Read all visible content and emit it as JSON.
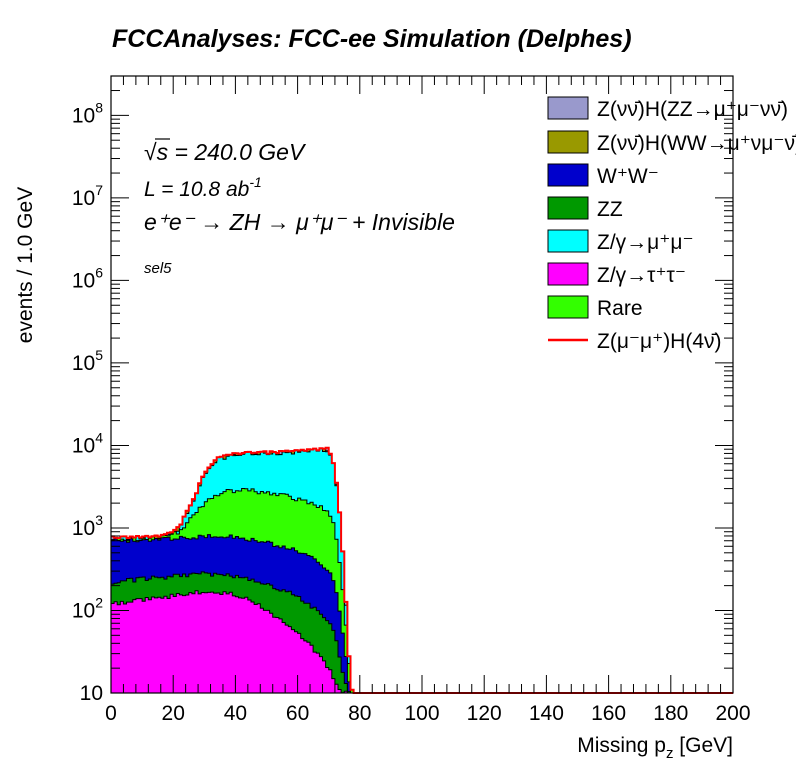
{
  "chart_data": {
    "type": "area",
    "title": "FCCAnalyses: FCC-ee Simulation (Delphes)",
    "xlabel_main": "Missing p",
    "xlabel_sub": "z",
    "xlabel_unit": " [GeV]",
    "ylabel": "events / 1.0 GeV",
    "xlim": [
      0,
      200
    ],
    "ylim": [
      10,
      300000000
    ],
    "log_y": true,
    "grid": false,
    "x_ticks": [
      "0",
      "20",
      "40",
      "60",
      "80",
      "100",
      "120",
      "140",
      "160",
      "180",
      "200"
    ],
    "y_ticks": [
      {
        "base": "10",
        "exp": ""
      },
      {
        "base": "10",
        "exp": "2"
      },
      {
        "base": "10",
        "exp": "3"
      },
      {
        "base": "10",
        "exp": "4"
      },
      {
        "base": "10",
        "exp": "5"
      },
      {
        "base": "10",
        "exp": "6"
      },
      {
        "base": "10",
        "exp": "7"
      },
      {
        "base": "10",
        "exp": "8"
      }
    ],
    "annotations": {
      "sqrt_s_prefix": "√",
      "sqrt_s_symbol": "s",
      "sqrt_s_value": " = 240.0 GeV",
      "lumi_prefix": "L = 10.8 ab",
      "lumi_exp": "-1",
      "process": "e⁺e⁻ → ZH → μ⁺μ⁻ + Invisible",
      "selection": "sel5"
    },
    "legend_position": "top-right",
    "x_knots": [
      0,
      5,
      10,
      15,
      18,
      22,
      26,
      30,
      34,
      38,
      42,
      46,
      50,
      55,
      60,
      65,
      70,
      72,
      74,
      76,
      77,
      78,
      200
    ],
    "series": [
      {
        "legend": "Z/γ→τ⁺τ⁻",
        "color": "#ff00ff",
        "values": [
          120,
          125,
          135,
          140,
          145,
          155,
          165,
          170,
          168,
          160,
          145,
          125,
          100,
          75,
          55,
          35,
          20,
          14,
          10,
          10,
          10,
          10,
          10
        ]
      },
      {
        "legend": "ZZ",
        "color": "#009900",
        "values": [
          220,
          230,
          240,
          250,
          255,
          265,
          275,
          280,
          275,
          270,
          255,
          235,
          210,
          180,
          150,
          110,
          75,
          55,
          20,
          12,
          10,
          10,
          10
        ]
      },
      {
        "legend": "W⁺W⁻",
        "color": "#0000cc",
        "values": [
          700,
          700,
          710,
          720,
          730,
          750,
          770,
          790,
          800,
          790,
          760,
          720,
          670,
          600,
          520,
          420,
          300,
          200,
          80,
          20,
          10,
          10,
          10
        ]
      },
      {
        "legend": "Rare",
        "color": "#33ff00",
        "values": [
          720,
          720,
          730,
          750,
          780,
          900,
          1400,
          2000,
          2500,
          2800,
          2850,
          2800,
          2700,
          2500,
          2250,
          2000,
          1600,
          1000,
          300,
          40,
          12,
          10,
          10
        ]
      },
      {
        "legend": "Z/γ→μ⁺μ⁻",
        "color": "#00ffff",
        "values": [
          740,
          750,
          760,
          770,
          800,
          1000,
          2000,
          4500,
          6800,
          7500,
          7800,
          8000,
          8100,
          8200,
          8400,
          8600,
          8900,
          5000,
          1000,
          60,
          12,
          10,
          10
        ]
      },
      {
        "legend": "Z(νν̄)H(WW→μ⁺νμ⁻ν̄)",
        "color": "#999900",
        "values": [
          742,
          752,
          762,
          772,
          802,
          1002,
          2003,
          4504,
          6805,
          7505,
          7805,
          8005,
          8105,
          8205,
          8405,
          8605,
          8905,
          5003,
          1001,
          60,
          12,
          10,
          10
        ]
      },
      {
        "legend": "Z(νν̄)H(ZZ→μ⁺μ⁻νν̄)",
        "color": "#9999cc",
        "values": [
          744,
          754,
          764,
          774,
          804,
          1004,
          2005,
          4507,
          6809,
          7509,
          7810,
          8010,
          8110,
          8210,
          8410,
          8610,
          8910,
          5006,
          1002,
          61,
          12,
          10,
          10
        ]
      }
    ],
    "signal": {
      "legend": "Z(μ⁻μ⁺)H(4ν̄)",
      "color": "#ff0000",
      "values": [
        745,
        755,
        765,
        775,
        806,
        1006,
        2008,
        4510,
        6813,
        7513,
        7815,
        8015,
        8116,
        8216,
        8416,
        8617,
        8918,
        5009,
        1003,
        61,
        12,
        10,
        10
      ]
    }
  }
}
